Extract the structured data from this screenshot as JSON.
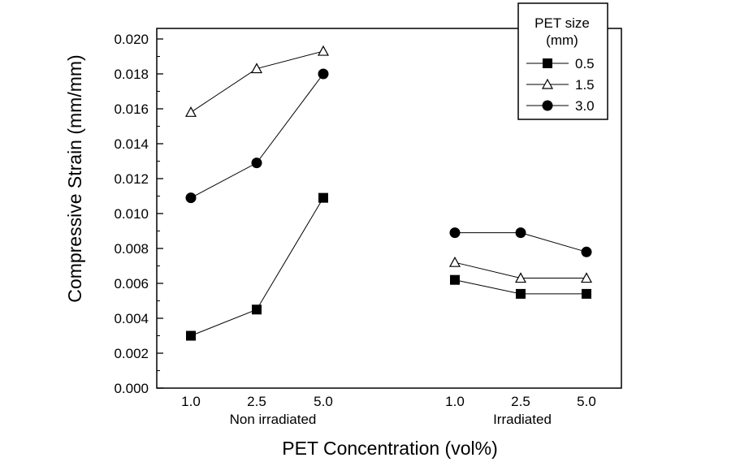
{
  "chart_data": {
    "type": "line",
    "xlabel": "PET Concentration (vol%)",
    "ylabel": "Compressive Strain (mm/mm)",
    "ylim": [
      0.0,
      0.02
    ],
    "y_ticks": [
      "0.000",
      "0.002",
      "0.004",
      "0.006",
      "0.008",
      "0.010",
      "0.012",
      "0.014",
      "0.016",
      "0.018",
      "0.020"
    ],
    "grid": false,
    "legend_position": "top-right",
    "legend_title": [
      "PET size",
      "(mm)"
    ],
    "groups": [
      {
        "label": "Non irradiated",
        "categories": [
          "1.0",
          "2.5",
          "5.0"
        ]
      },
      {
        "label": "Irradiated",
        "categories": [
          "1.0",
          "2.5",
          "5.0"
        ]
      }
    ],
    "series": [
      {
        "name": "0.5",
        "marker": "filled-square",
        "values": {
          "Non irradiated": [
            0.003,
            0.0045,
            0.0109
          ],
          "Irradiated": [
            0.0062,
            0.0054,
            0.0054
          ]
        }
      },
      {
        "name": "1.5",
        "marker": "open-triangle",
        "values": {
          "Non irradiated": [
            0.0158,
            0.0183,
            0.0193
          ],
          "Irradiated": [
            0.0072,
            0.0063,
            0.0063
          ]
        }
      },
      {
        "name": "3.0",
        "marker": "filled-circle",
        "values": {
          "Non irradiated": [
            0.0109,
            0.0129,
            0.018
          ],
          "Irradiated": [
            0.0089,
            0.0089,
            0.0078
          ]
        }
      }
    ]
  }
}
